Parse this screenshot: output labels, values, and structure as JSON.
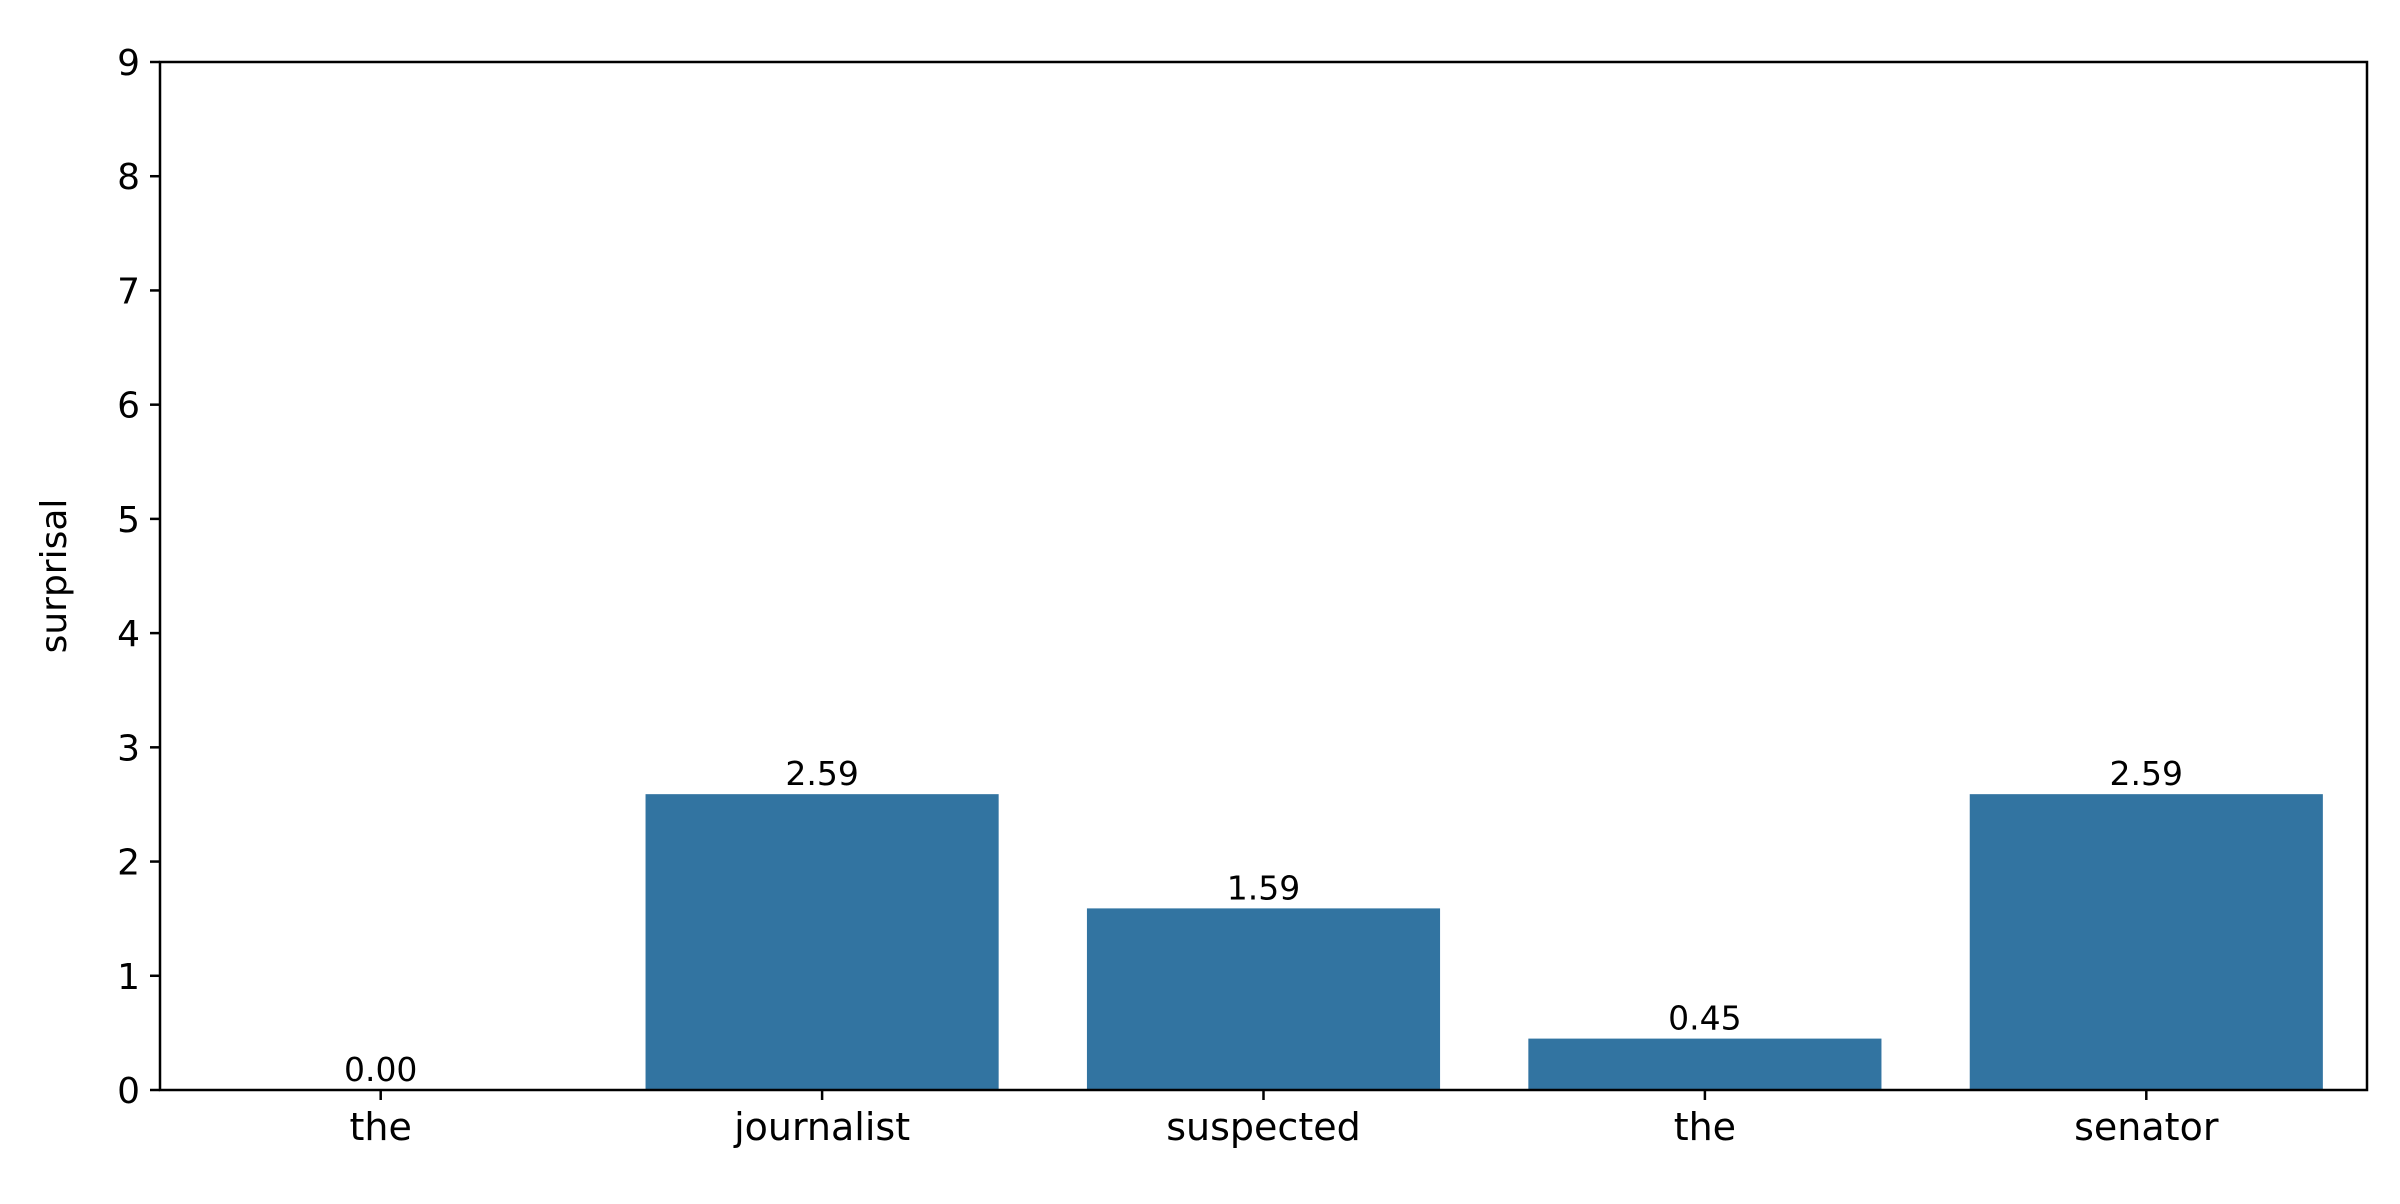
{
  "chart_data": {
    "type": "bar",
    "title": "",
    "xlabel": "",
    "ylabel": "surprisal",
    "categories": [
      "the",
      "journalist",
      "suspected",
      "the",
      "senator"
    ],
    "values": [
      0.0,
      2.59,
      1.59,
      0.45,
      2.59
    ],
    "value_labels": [
      "0.00",
      "2.59",
      "1.59",
      "0.45",
      "2.59"
    ],
    "ylim": [
      0,
      9
    ],
    "yticks": [
      0,
      1,
      2,
      3,
      4,
      5,
      6,
      7,
      8,
      9
    ],
    "grid": false,
    "legend": "none",
    "bar_color": "#3274a1"
  }
}
